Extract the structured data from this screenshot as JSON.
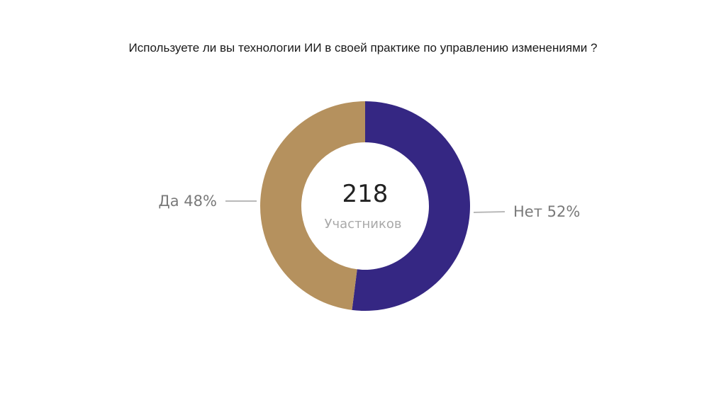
{
  "chart_data": {
    "type": "pie",
    "title": "Используете ли вы технологии ИИ в своей практике по управлению изменениями ?",
    "center": {
      "value": "218",
      "label": "Участников"
    },
    "slices": [
      {
        "label": "Нет 52%",
        "name": "Нет",
        "value": 52,
        "color": "#352783"
      },
      {
        "label": "Да 48%",
        "name": "Да",
        "value": 48,
        "color": "#b5915e"
      }
    ]
  }
}
